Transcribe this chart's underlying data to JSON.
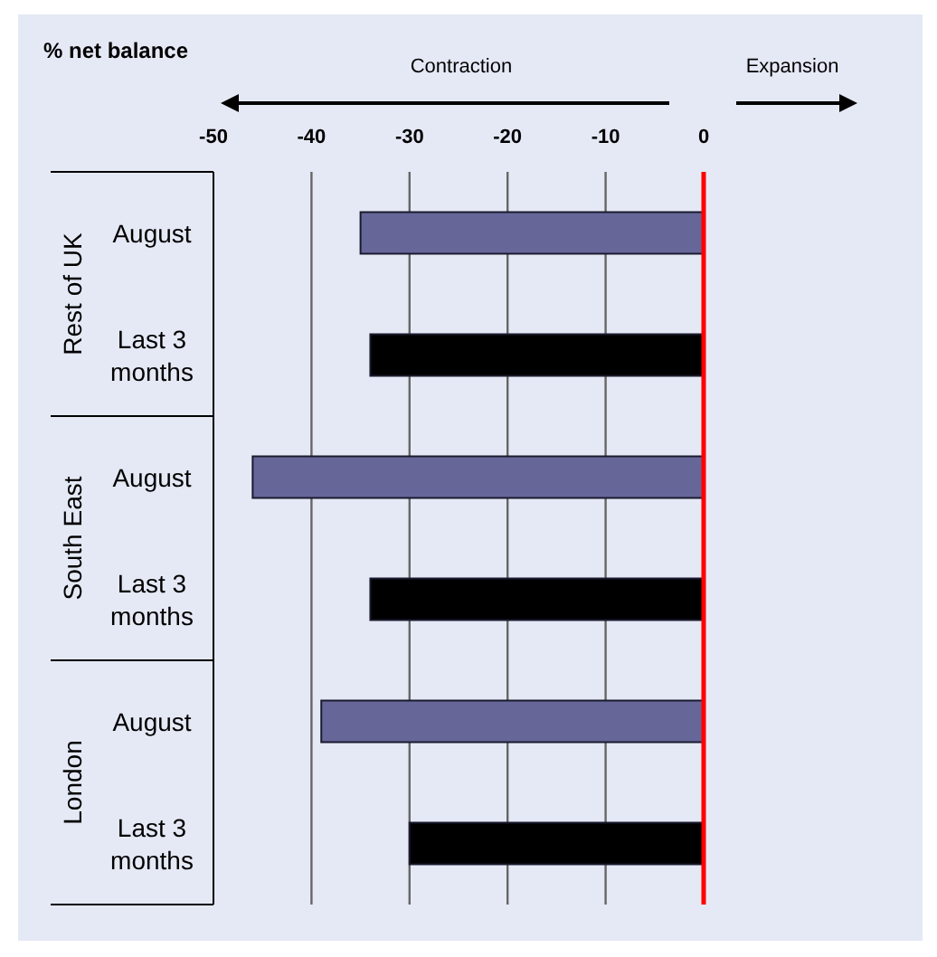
{
  "chart_data": {
    "type": "bar",
    "orientation": "horizontal",
    "title": "% net balance",
    "categories": [
      "August",
      "Last 3 months",
      "August",
      "Last 3 months",
      "August",
      "Last 3 months"
    ],
    "values": [
      -35,
      -34,
      -46,
      -34,
      -39,
      -30
    ],
    "colors": [
      "#666699",
      "#000000",
      "#666699",
      "#000000",
      "#666699",
      "#000000"
    ],
    "xlim": [
      -50,
      0
    ],
    "xticks": [
      -50,
      -40,
      -30,
      -20,
      -10,
      0
    ],
    "grid": "x",
    "ref_lines": [
      {
        "axis": "x",
        "value": 0,
        "color": "#ff0000"
      }
    ],
    "annotations": [
      "Rest of UK",
      "South East",
      "London",
      "Contraction",
      "Expansion"
    ]
  }
}
